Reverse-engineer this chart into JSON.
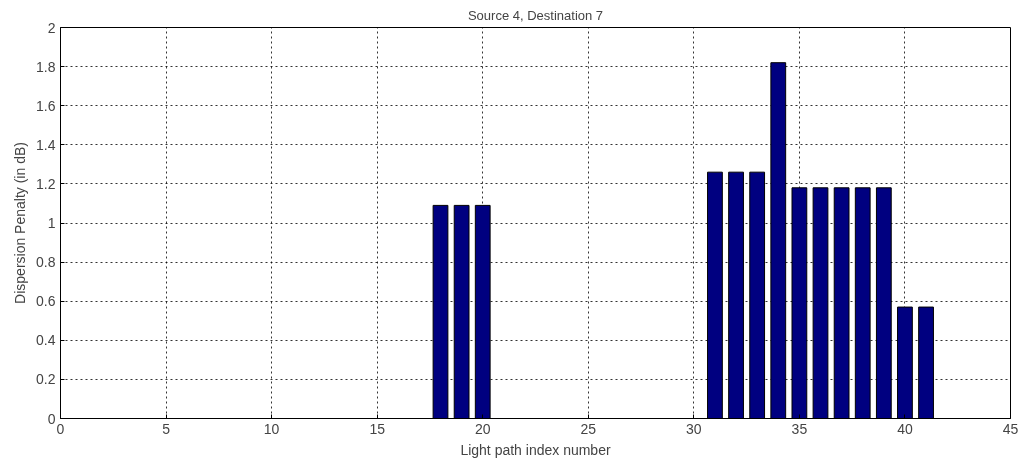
{
  "chart_data": {
    "type": "bar",
    "title": "Source 4, Destination 7",
    "xlabel": "Light path index number",
    "ylabel": "Dispersion Penalty (in dB)",
    "x": [
      18,
      19,
      20,
      31,
      32,
      33,
      34,
      35,
      36,
      37,
      38,
      39,
      40,
      41
    ],
    "values": [
      1.09,
      1.09,
      1.09,
      1.26,
      1.26,
      1.26,
      1.82,
      1.18,
      1.18,
      1.18,
      1.18,
      1.18,
      0.57,
      0.57
    ],
    "color": "#000080",
    "xlim": [
      0,
      45
    ],
    "xticks": [
      0,
      5,
      10,
      15,
      20,
      25,
      30,
      35,
      40,
      45
    ],
    "ylim": [
      0,
      2
    ],
    "yticks": [
      0,
      0.2,
      0.4,
      0.6,
      0.8,
      1,
      1.2,
      1.4,
      1.6,
      1.8,
      2
    ],
    "grid": true
  }
}
